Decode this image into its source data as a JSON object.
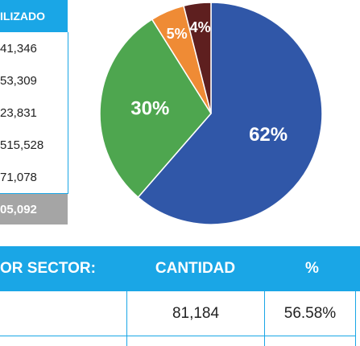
{
  "left_table": {
    "header": "ILIZADO",
    "rows": [
      "41,346",
      "53,309",
      "23,831",
      "515,528",
      "71,078"
    ],
    "total": "05,092"
  },
  "bottom_table": {
    "headers": [
      "OR SECTOR:",
      "CANTIDAD",
      "%"
    ],
    "row1": [
      "",
      "81,184",
      "56.58%"
    ]
  },
  "chart_data": {
    "type": "pie",
    "slices": [
      {
        "label": "62%",
        "value": 62,
        "color": "#3057a8"
      },
      {
        "label": "30%",
        "value": 30,
        "color": "#4ea64f"
      },
      {
        "label": "5%",
        "value": 5,
        "color": "#ef8b35"
      },
      {
        "label": "4%",
        "value": 4,
        "color": "#5e1f1f"
      }
    ],
    "start_angle_deg": 0,
    "direction": "clockwise"
  }
}
